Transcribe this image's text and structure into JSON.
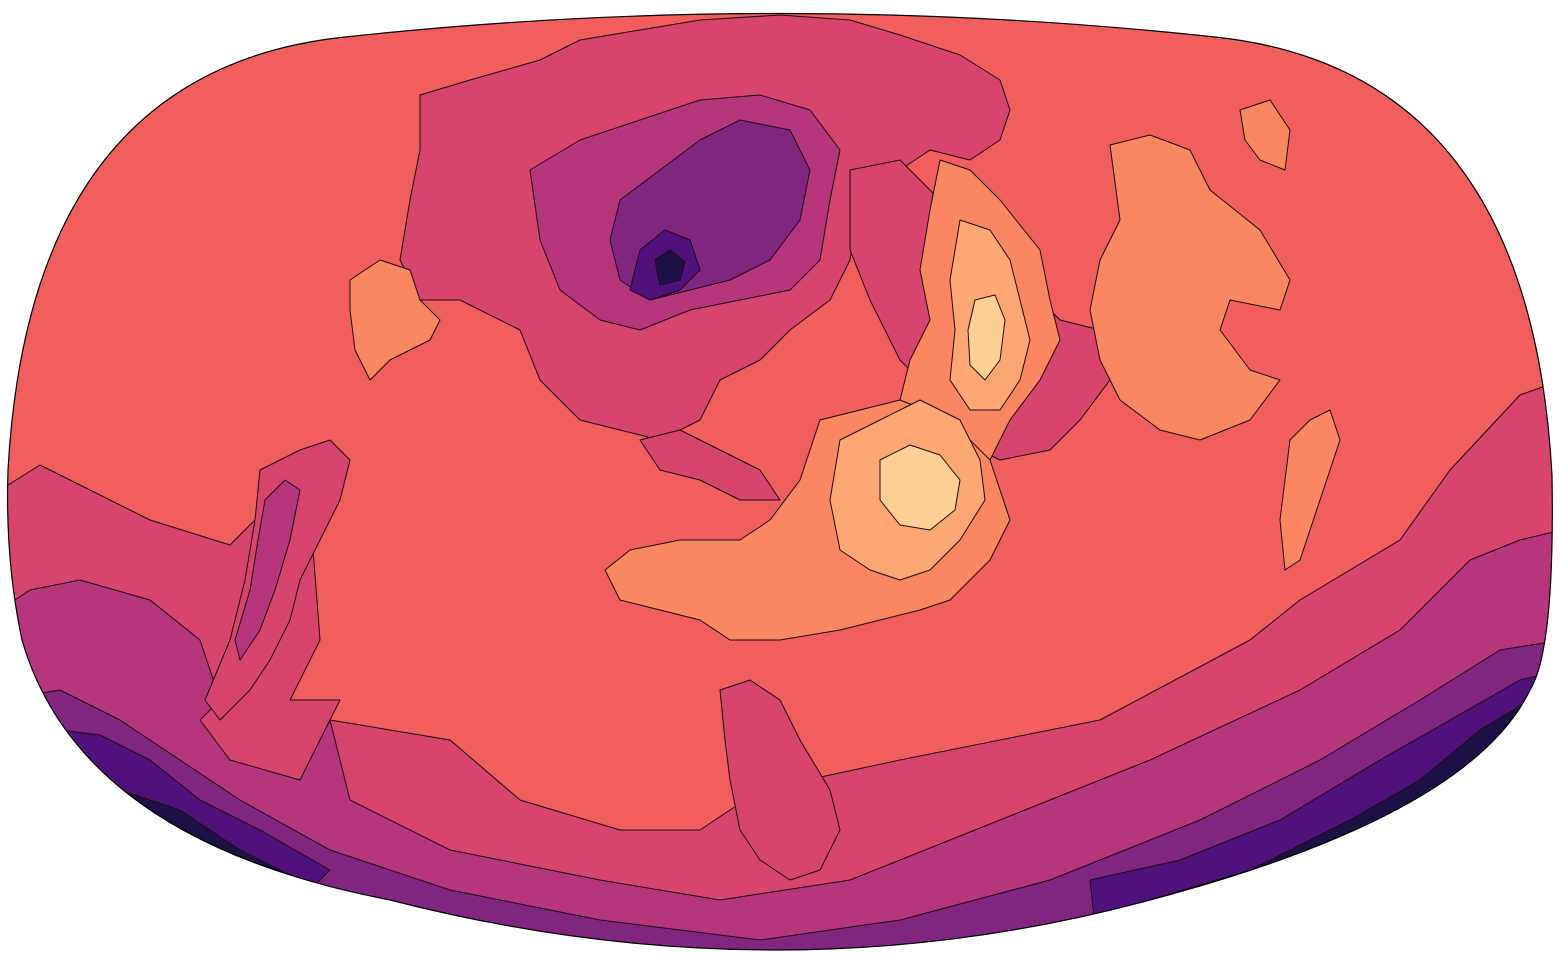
{
  "map": {
    "type": "filled-contour",
    "projection": "oblique-pseudocylindrical",
    "colormap": "magma",
    "levels": [
      {
        "level": 0,
        "color": "#000004"
      },
      {
        "level": 1,
        "color": "#1c1044"
      },
      {
        "level": 2,
        "color": "#4f127b"
      },
      {
        "level": 3,
        "color": "#812581"
      },
      {
        "level": 4,
        "color": "#b5367a"
      },
      {
        "level": 5,
        "color": "#d8456c"
      },
      {
        "level": 6,
        "color": "#f05f5e"
      },
      {
        "level": 7,
        "color": "#fb8761"
      },
      {
        "level": 8,
        "color": "#fea772"
      },
      {
        "level": 9,
        "color": "#fecf92"
      }
    ],
    "contour_line_color": "#1a0a14",
    "frame_color": "#000000"
  }
}
